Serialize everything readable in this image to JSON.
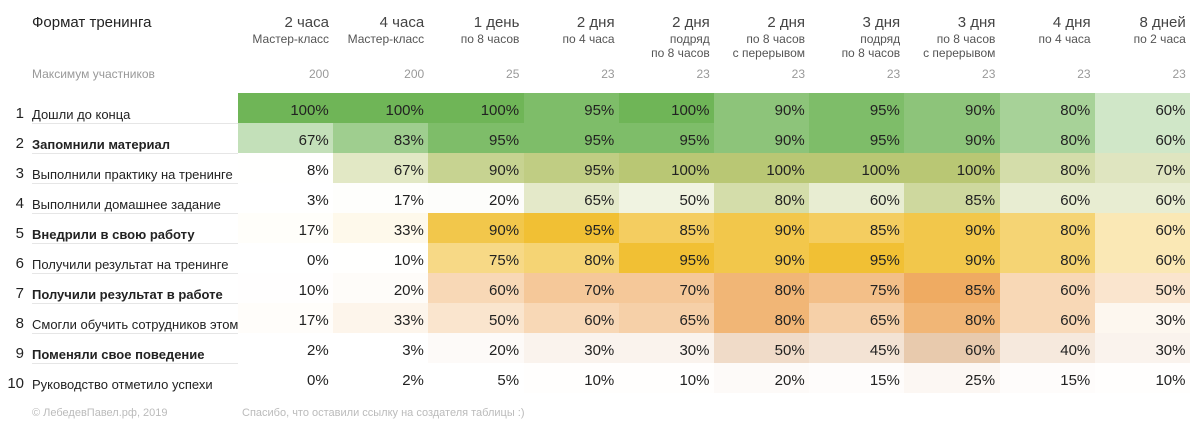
{
  "chart_data": {
    "type": "table",
    "title": "Формат тренинга",
    "max_participants_label": "Максимум участников",
    "columns": [
      {
        "label": "2 часа",
        "sub": [
          "Мастер-класс"
        ],
        "max": "200"
      },
      {
        "label": "4 часа",
        "sub": [
          "Мастер-класс"
        ],
        "max": "200"
      },
      {
        "label": "1 день",
        "sub": [
          "по 8 часов"
        ],
        "max": "25"
      },
      {
        "label": "2 дня",
        "sub": [
          "по 4 часа"
        ],
        "max": "23"
      },
      {
        "label": "2 дня",
        "sub": [
          "подряд",
          "по 8 часов"
        ],
        "max": "23"
      },
      {
        "label": "2 дня",
        "sub": [
          "по 8 часов",
          "с перерывом"
        ],
        "max": "23"
      },
      {
        "label": "3 дня",
        "sub": [
          "подряд",
          "по 8 часов"
        ],
        "max": "23"
      },
      {
        "label": "3 дня",
        "sub": [
          "по 8 часов",
          "с перерывом"
        ],
        "max": "23"
      },
      {
        "label": "4 дня",
        "sub": [
          "по 4 часа"
        ],
        "max": "23"
      },
      {
        "label": "8 дней",
        "sub": [
          "по 2 часа"
        ],
        "max": "23"
      }
    ],
    "rows": [
      {
        "num": "1",
        "label": "Дошли до конца",
        "bold": false,
        "group": "green",
        "values": [
          100,
          100,
          100,
          95,
          100,
          90,
          95,
          90,
          80,
          60
        ]
      },
      {
        "num": "2",
        "label": "Запомнили материал",
        "bold": true,
        "group": "green",
        "values": [
          67,
          83,
          95,
          95,
          95,
          90,
          95,
          90,
          80,
          60
        ]
      },
      {
        "num": "3",
        "label": "Выполнили практику на тренинге",
        "bold": false,
        "group": "olive",
        "values": [
          8,
          67,
          90,
          95,
          100,
          100,
          100,
          100,
          80,
          70
        ]
      },
      {
        "num": "4",
        "label": "Выполнили домашнее задание",
        "bold": false,
        "group": "olive",
        "values": [
          3,
          17,
          20,
          65,
          50,
          80,
          60,
          85,
          60,
          60
        ]
      },
      {
        "num": "5",
        "label": "Внедрили в свою работу",
        "bold": true,
        "group": "yellow",
        "values": [
          17,
          33,
          90,
          95,
          85,
          90,
          85,
          90,
          80,
          60
        ]
      },
      {
        "num": "6",
        "label": "Получили результат на тренинге",
        "bold": false,
        "group": "yellow",
        "values": [
          0,
          10,
          75,
          80,
          95,
          90,
          95,
          90,
          80,
          60
        ]
      },
      {
        "num": "7",
        "label": "Получили результат в работе",
        "bold": true,
        "group": "orange",
        "values": [
          10,
          20,
          60,
          70,
          70,
          80,
          75,
          85,
          60,
          50
        ]
      },
      {
        "num": "8",
        "label": "Смогли обучить сотрудников этому",
        "bold": false,
        "group": "orange",
        "values": [
          17,
          33,
          50,
          60,
          65,
          80,
          65,
          80,
          60,
          30
        ]
      },
      {
        "num": "9",
        "label": "Поменяли свое поведение",
        "bold": true,
        "group": "brown",
        "values": [
          2,
          3,
          20,
          30,
          30,
          50,
          45,
          60,
          40,
          30
        ]
      },
      {
        "num": "10",
        "label": "Руководство отметило успехи",
        "bold": false,
        "group": "brown",
        "values": [
          0,
          2,
          5,
          10,
          10,
          20,
          15,
          25,
          15,
          10
        ]
      }
    ],
    "colors": {
      "green": "#6fb557",
      "olive": "#b9c774",
      "yellow": "#efb81c",
      "orange": "#e8871f",
      "brown": "#b85b03"
    },
    "unit": "%"
  },
  "footer": {
    "copyright": "© ЛебедевПавел.рф, 2019",
    "thanks": "Спасибо, что оставили ссылку на создателя таблицы :)"
  }
}
